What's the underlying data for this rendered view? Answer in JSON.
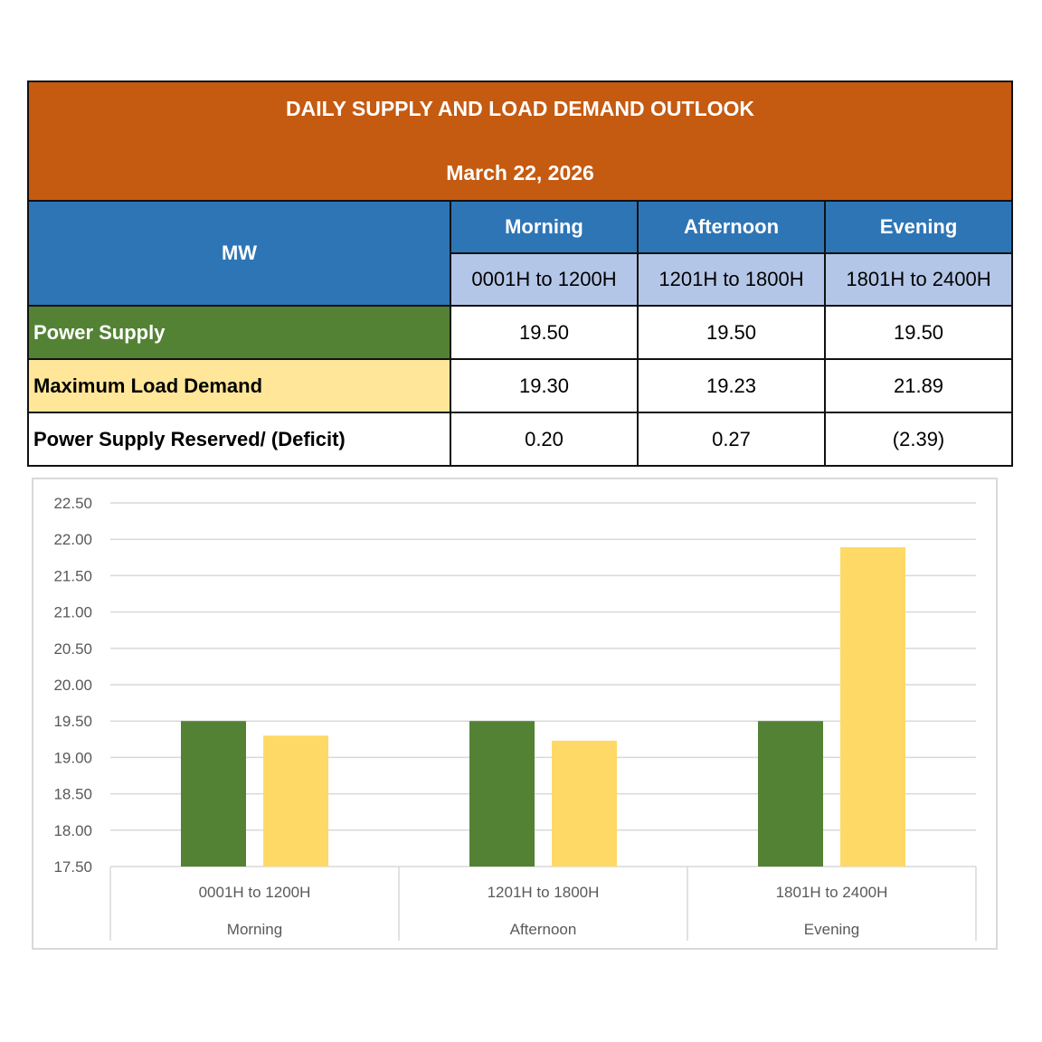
{
  "table": {
    "title": "DAILY SUPPLY AND LOAD DEMAND OUTLOOK",
    "date": "March 22, 2026",
    "unit_label": "MW",
    "periods": [
      {
        "name": "Morning",
        "range": "0001H to 1200H"
      },
      {
        "name": "Afternoon",
        "range": "1201H to 1800H"
      },
      {
        "name": "Evening",
        "range": "1801H to 2400H"
      }
    ],
    "rows": [
      {
        "label": "Power Supply",
        "values": [
          "19.50",
          "19.50",
          "19.50"
        ]
      },
      {
        "label": "Maximum Load Demand",
        "values": [
          "19.30",
          "19.23",
          "21.89"
        ]
      },
      {
        "label": "Power Supply Reserved/ (Deficit)",
        "values": [
          "0.20",
          "0.27",
          "(2.39)"
        ]
      }
    ]
  },
  "colors": {
    "banner": "#c55a11",
    "header": "#2e75b6",
    "subheader": "#b4c6e7",
    "supply": "#548235",
    "demand": "#ffe699",
    "demand_bar": "#ffd966",
    "gridline": "#d9d9d9"
  },
  "chart_data": {
    "type": "bar",
    "categories": [
      {
        "range": "0001H to 1200H",
        "period": "Morning"
      },
      {
        "range": "1201H to 1800H",
        "period": "Afternoon"
      },
      {
        "range": "1801H to 2400H",
        "period": "Evening"
      }
    ],
    "series": [
      {
        "values": [
          19.5,
          19.5,
          19.5
        ],
        "color": "#548235"
      },
      {
        "values": [
          19.3,
          19.23,
          21.89
        ],
        "color": "#ffd966"
      }
    ],
    "ylim": [
      17.5,
      22.5
    ],
    "yticks": [
      "17.50",
      "18.00",
      "18.50",
      "19.00",
      "19.50",
      "20.00",
      "20.50",
      "21.00",
      "21.50",
      "22.00",
      "22.50"
    ],
    "grid": true,
    "legend": "none"
  }
}
